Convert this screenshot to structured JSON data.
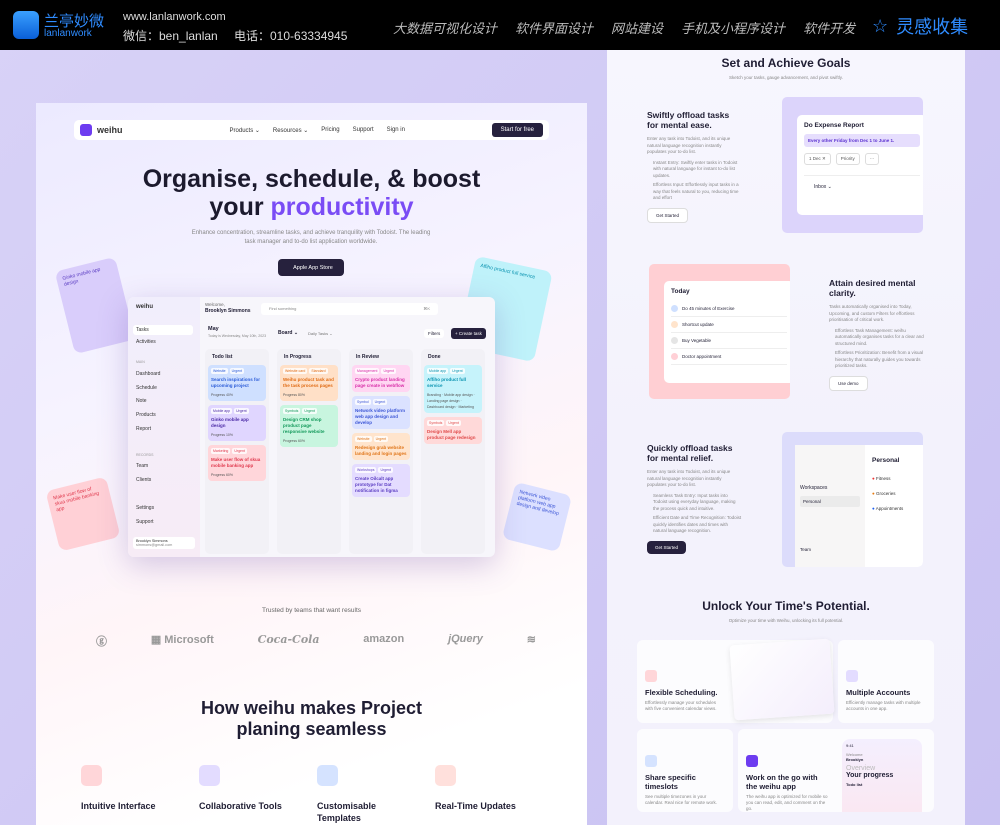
{
  "topbar": {
    "logo_cn": "兰亭妙微",
    "logo_en": "lanlanwork",
    "site": "www.lanlanwork.com",
    "wechat": "微信：ben_lanlan",
    "phone": "电话：010-63334945",
    "nav": [
      "大数据可视化设计",
      "软件界面设计",
      "网站建设",
      "手机及小程序设计",
      "软件开发"
    ],
    "inspiration": "灵感收集",
    "accent": "#2f8cff"
  },
  "left": {
    "nav": {
      "brand": "weihu",
      "links": [
        "Products ⌄",
        "Resources ⌄",
        "Pricing",
        "Support",
        "Sign in"
      ],
      "cta": "Start for free"
    },
    "hero": {
      "line1": "Organise, schedule, & boost",
      "line2a": "your ",
      "line2b": "productivity",
      "sub": "Enhance concentration, streamline tasks, and achieve tranquility with Todoist. The leading task manager and to-do list application worldwide.",
      "app_btn": "Apple App Store"
    },
    "floats": {
      "left_top": "Ginko mobile app design",
      "left_bottom": "Make user flow of skua mobile banking app",
      "right_top": "Affiho product full service",
      "right_bottom": "Network video platform web app design and develop"
    },
    "dashboard": {
      "brand": "weihu",
      "welcome": "Welcome,",
      "user": "Brooklyn Simmons",
      "search": "Find something",
      "shortcut": "⌘K",
      "month": "May",
      "date": "Today is Wednesday, May 10th, 2023",
      "board": "Board ⌄",
      "daily": "Daily Tasks ⌄",
      "filters": "Filters",
      "create": "+ Create task",
      "sidebar": {
        "top": [
          "Tasks",
          "Activities"
        ],
        "main_label": "MAIN",
        "main": [
          "Dashboard",
          "Schedule",
          "Note",
          "Products",
          "Report"
        ],
        "records_label": "RECORDS",
        "records": [
          "Team",
          "Clients"
        ],
        "bottom": [
          "Settings",
          "Support"
        ],
        "profile_name": "Brooklyn Simmons",
        "profile_email": "simmons@gmail.com"
      },
      "columns": [
        {
          "title": "Todo list",
          "cards": [
            {
              "tags": [
                "Website",
                "Urgent"
              ],
              "title": "Search inspirations for upcoming project",
              "progress": "Progress 40%",
              "color": "#cfe0ff",
              "text": "#2a5bd7"
            },
            {
              "tags": [
                "Mobile app",
                "Urgent"
              ],
              "title": "Ginko mobile app design",
              "progress": "Progress 10%",
              "color": "#e0d6ff",
              "text": "#4b2aa6"
            },
            {
              "tags": [
                "Marketing",
                "Urgent"
              ],
              "title": "Make user flow of skua mobile banking app",
              "progress": "Progress 60%",
              "color": "#ffd6da",
              "text": "#e03a4e"
            }
          ]
        },
        {
          "title": "In Progress",
          "cards": [
            {
              "tags": [
                "Website card",
                "Standard"
              ],
              "title": "Weihu product task and the task process pages",
              "progress": "Progress 80%",
              "color": "#ffe0c7",
              "text": "#e06c15"
            },
            {
              "tags": [
                "Symbols",
                "Urgent"
              ],
              "title": "Design CRM shop product page responsive website",
              "progress": "Progress 60%",
              "color": "#c8f5df",
              "text": "#12995a"
            }
          ]
        },
        {
          "title": "In Review",
          "cards": [
            {
              "tags": [
                "Management",
                "Urgent"
              ],
              "title": "Crypto product landing page create in webflow",
              "progress": "",
              "color": "#ffd6f2",
              "text": "#d82fa8"
            },
            {
              "tags": [
                "Symbol",
                "Urgent"
              ],
              "title": "Network video platform web app design and develop",
              "progress": "",
              "color": "#dbe2ff",
              "text": "#3b55d6"
            },
            {
              "tags": [
                "Website",
                "Urgent"
              ],
              "title": "Redesign grab website landing and login pages",
              "progress": "",
              "color": "#ffe4cc",
              "text": "#e0761a"
            },
            {
              "tags": [
                "Workshops",
                "Urgent"
              ],
              "title": "Create Oilcalt app prototype for Dat notification in figma",
              "progress": "",
              "color": "#e4dcff",
              "text": "#5a3cc2"
            }
          ]
        },
        {
          "title": "Done",
          "cards": [
            {
              "tags": [
                "Mobile app",
                "Urgent"
              ],
              "title": "Affiho product full service",
              "progress": "Branding · Mobile app design · Landing page design · Dashboard design · Marketing",
              "color": "#c6f3fb",
              "text": "#0a93b0"
            },
            {
              "tags": [
                "Symbols",
                "Urgent"
              ],
              "title": "Design Mell app product page redesign",
              "progress": "",
              "color": "#ffd9d9",
              "text": "#e04a4a"
            }
          ]
        }
      ]
    },
    "trusted": "Trusted by teams that want results",
    "logos": [
      "ⓖ",
      "▦ Microsoft",
      "Coca-Cola",
      "amazon",
      "jQuery",
      "≋"
    ],
    "how_title1": "How weihu makes Project",
    "how_title2": "planing seamless",
    "features": [
      {
        "title": "Intuitive Interface",
        "color": "#ffd6d9"
      },
      {
        "title": "Collaborative Tools",
        "color": "#e3dcff"
      },
      {
        "title": "Customisable Templates",
        "color": "#d5e3ff"
      },
      {
        "title": "Real-Time Updates",
        "color": "#ffe0dc"
      }
    ]
  },
  "right": {
    "title": "Set and Achieve Goals",
    "subtitle": "Sketch your tasks, gauge advancement, and pivot swiftly.",
    "s1": {
      "title": "Swiftly offload tasks for mental ease.",
      "body": "Enter any task into Todoist, and its unique natural language recognition instantly populates your to-do list.",
      "bullets": [
        "Instant Entry: Swiftly enter tasks in Todoist with natural language for instant to-do list updates.",
        "Effortless Input: Effortlessly input tasks in a way that feels natural to you, reducing time and effort"
      ],
      "button": "Get Started",
      "card": {
        "title": "Do Expense Report",
        "recurrence": "Every other Friday from Dec 1 to June 1.",
        "date": "1 Dec ✕",
        "priority": "Priority",
        "more": "···",
        "inbox": "Inbox ⌄"
      }
    },
    "s2": {
      "title": "Attain desired mental clarity.",
      "body": "Tasks automatically organised into Today, Upcoming, and custom Filters for effortless prioritisation of critical work.",
      "bullets": [
        "Effortless Task Management: weihu automatically organises tasks for a clear and structured mind.",
        "Effortless Prioritization: Benefit from a visual hierarchy that naturally guides you towards prioritized tasks."
      ],
      "button": "Use demo",
      "card": {
        "title": "Today",
        "items": [
          "Do 45 minutes of Exercise",
          "Shortcut update",
          "Buy Vegetable",
          "Doctor appointment"
        ]
      }
    },
    "s3": {
      "title": "Quickly offload tasks for mental relief.",
      "body": "Enter any task into Todoist, and its unique natural language recognition instantly populates your to-do list.",
      "bullets": [
        "Seamless Task Entry: Input tasks into Todoist using everyday language, making the process quick and intuitive.",
        "Efficient Date and Time Recognition: Todoist quickly identifies dates and times with natural language recognition."
      ],
      "button": "Get Started",
      "card": {
        "workspaces": "Workspaces",
        "personal": "Personal",
        "team": "Team",
        "heading": "Personal",
        "items": [
          "Fitness",
          "Groceries",
          "Appointments"
        ]
      }
    },
    "unlock": {
      "title": "Unlock Your Time's Potential.",
      "subtitle": "Optimize your time with Weihu, unlocking its full potential.",
      "tiles": [
        {
          "title": "Flexible Scheduling.",
          "body": "Effortlessly manage your schedules with five convenient calendar views."
        },
        {
          "title": "Multiple Accounts",
          "body": "Efficiently manage tasks with multiple accounts in one app."
        },
        {
          "title": "Share specific timeslots",
          "body": "See multiple timezones in your calendar. Real nice for remote work."
        },
        {
          "title": "Work on the go with the weihu app",
          "body": "The weihu app is optimized for mobile so you can read, edit, and comment on the go."
        }
      ],
      "phone": {
        "time": "9:41",
        "welcome": "Welcome",
        "name": "Brooklyn",
        "overview": "Overview",
        "progress": "Your progress",
        "todo": "Todo list"
      }
    }
  }
}
